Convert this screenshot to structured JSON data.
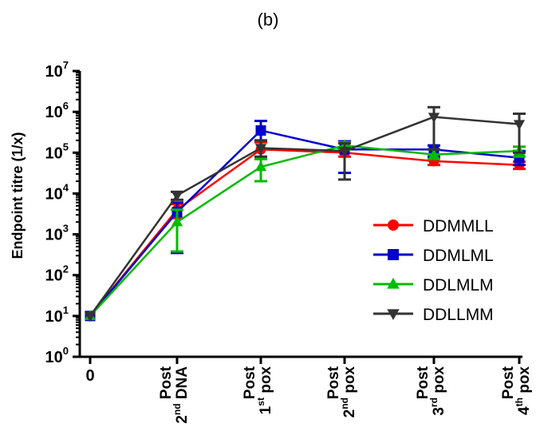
{
  "panel_label": "(b)",
  "chart_data": {
    "type": "line",
    "title": "",
    "xlabel": "",
    "ylabel": "Endpoint titre (1/x)",
    "y_scale": "log10",
    "ylim": [
      1,
      10000000
    ],
    "y_ticks": [
      {
        "base": "10",
        "exp": "0"
      },
      {
        "base": "10",
        "exp": "1"
      },
      {
        "base": "10",
        "exp": "2"
      },
      {
        "base": "10",
        "exp": "3"
      },
      {
        "base": "10",
        "exp": "4"
      },
      {
        "base": "10",
        "exp": "5"
      },
      {
        "base": "10",
        "exp": "6"
      },
      {
        "base": "10",
        "exp": "7"
      }
    ],
    "categories": [
      {
        "line1": "0",
        "line2": "",
        "sup": "",
        "rest": ""
      },
      {
        "line1": "Post",
        "line2": "2",
        "sup": "nd",
        "rest": " DNA"
      },
      {
        "line1": "Post",
        "line2": "1",
        "sup": "st",
        "rest": " pox"
      },
      {
        "line1": "Post",
        "line2": "2",
        "sup": "nd",
        "rest": " pox"
      },
      {
        "line1": "Post",
        "line2": "3",
        "sup": "rd",
        "rest": " pox"
      },
      {
        "line1": "Post",
        "line2": "4",
        "sup": "th",
        "rest": " pox"
      }
    ],
    "legend_position": "right",
    "series": [
      {
        "name": "DDMMLL",
        "color": "#ff0000",
        "marker": "circle",
        "values": [
          10,
          4000,
          120000,
          100000,
          62000,
          50000
        ],
        "err_low": [
          10,
          2500,
          70000,
          80000,
          50000,
          40000
        ],
        "err_high": [
          10,
          5500,
          180000,
          130000,
          80000,
          60000
        ]
      },
      {
        "name": "DDMLML",
        "color": "#0000cc",
        "marker": "square",
        "values": [
          10,
          3500,
          350000,
          120000,
          120000,
          75000
        ],
        "err_low": [
          10,
          350,
          200000,
          32000,
          80000,
          50000
        ],
        "err_high": [
          10,
          6000,
          600000,
          190000,
          150000,
          110000
        ]
      },
      {
        "name": "DDLMLM",
        "color": "#00bb00",
        "marker": "triangle",
        "values": [
          10,
          2000,
          45000,
          150000,
          90000,
          110000
        ],
        "err_low": [
          10,
          380,
          20000,
          120000,
          70000,
          80000
        ],
        "err_high": [
          10,
          4000,
          70000,
          180000,
          120000,
          140000
        ]
      },
      {
        "name": "DDLLMM",
        "color": "#333333",
        "marker": "triangle-down",
        "values": [
          10,
          9000,
          130000,
          110000,
          750000,
          500000
        ],
        "err_low": [
          10,
          7000,
          80000,
          22000,
          120000,
          100000
        ],
        "err_high": [
          10,
          11000,
          200000,
          170000,
          1300000,
          900000
        ]
      }
    ]
  }
}
